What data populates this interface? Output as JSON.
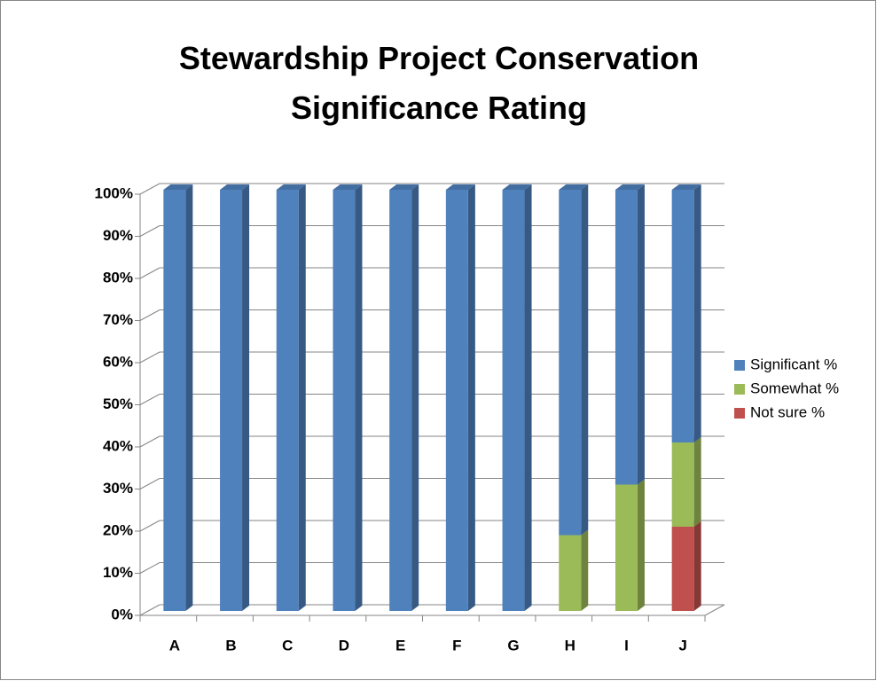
{
  "chart_data": {
    "type": "bar",
    "stacked": true,
    "title": "Stewardship Project Conservation Significance Rating",
    "categories": [
      "A",
      "B",
      "C",
      "D",
      "E",
      "F",
      "G",
      "H",
      "I",
      "J"
    ],
    "series": [
      {
        "name": "Significant %",
        "color": "#4f81bd",
        "values": [
          100,
          100,
          100,
          100,
          100,
          100,
          100,
          82,
          70,
          60
        ]
      },
      {
        "name": "Somewhat %",
        "color": "#9bbb59",
        "values": [
          0,
          0,
          0,
          0,
          0,
          0,
          0,
          18,
          30,
          20
        ]
      },
      {
        "name": "Not sure %",
        "color": "#c0504d",
        "values": [
          0,
          0,
          0,
          0,
          0,
          0,
          0,
          0,
          0,
          20
        ]
      }
    ],
    "ylim": [
      0,
      100
    ],
    "yticks": [
      {
        "value": 0,
        "label": "0%"
      },
      {
        "value": 10,
        "label": "10%"
      },
      {
        "value": 20,
        "label": "20%"
      },
      {
        "value": 30,
        "label": "30%"
      },
      {
        "value": 40,
        "label": "40%"
      },
      {
        "value": 50,
        "label": "50%"
      },
      {
        "value": 60,
        "label": "60%"
      },
      {
        "value": 70,
        "label": "70%"
      },
      {
        "value": 80,
        "label": "80%"
      },
      {
        "value": 90,
        "label": "90%"
      },
      {
        "value": 100,
        "label": "100%"
      }
    ],
    "grid": true,
    "legend": "right"
  }
}
